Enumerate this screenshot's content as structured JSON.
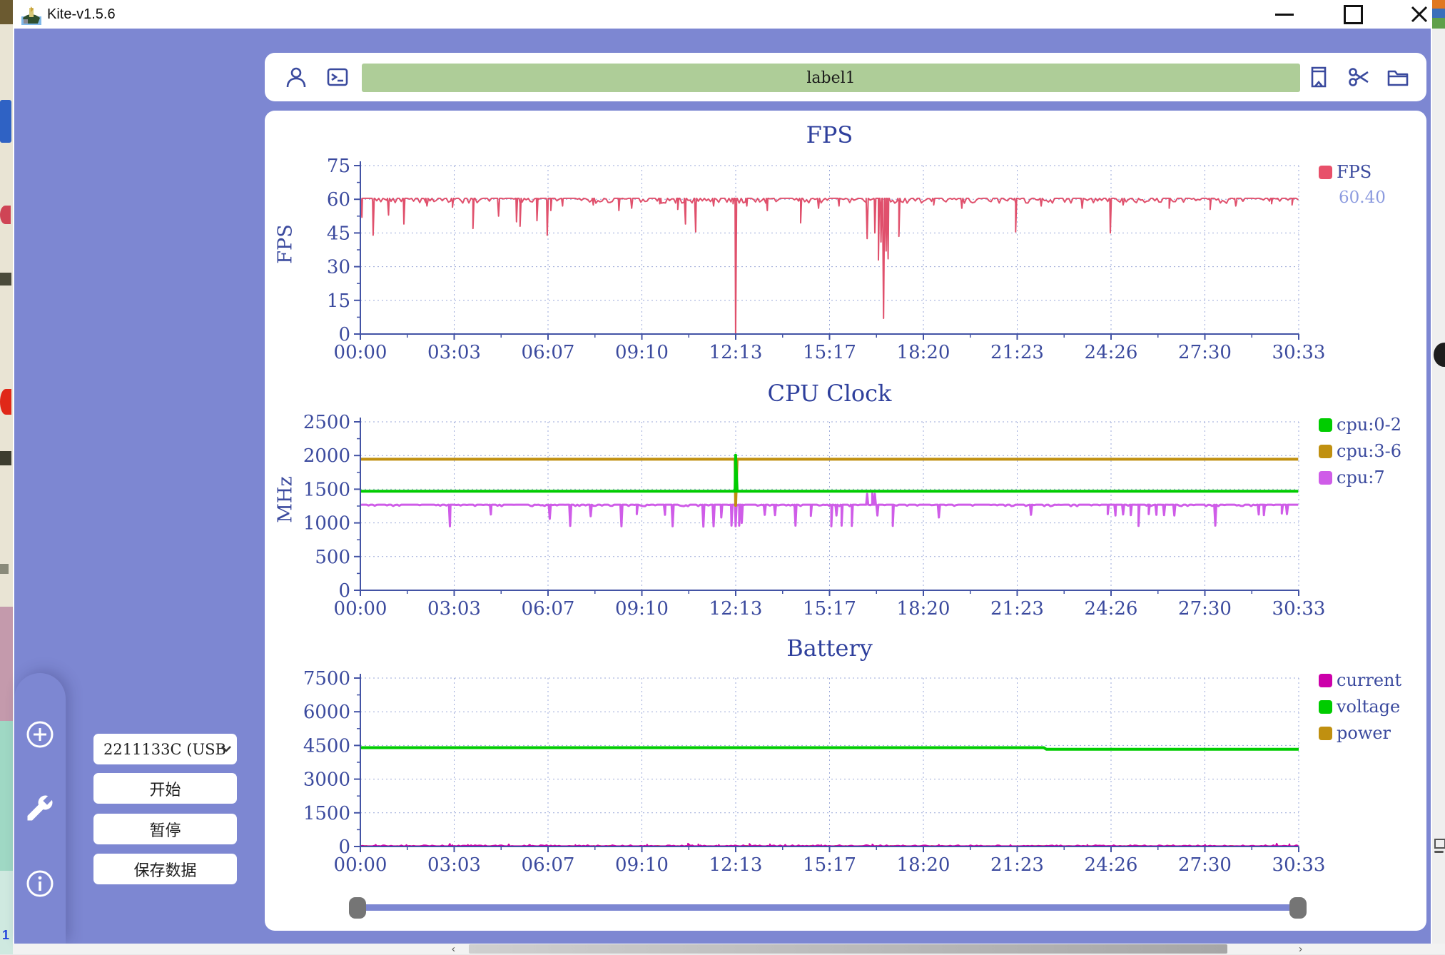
{
  "window": {
    "title": "Kite-v1.5.6"
  },
  "toolbar": {
    "label_value": "label1"
  },
  "controls": {
    "device_value": "2211133C (USB",
    "start_label": "开始",
    "pause_label": "暂停",
    "save_label": "保存数据"
  },
  "colors": {
    "purple": "#7d87d2",
    "panel": "#ffffff",
    "icon_blue": "#3a4a9e",
    "input_green": "#aecd98",
    "chart_text": "#3b4a9e",
    "axis": "#4353a5",
    "grid": "#9aa7d8",
    "fps_red": "#e8566e",
    "green": "#00cc00",
    "gold": "#c09010",
    "violet": "#cf5ce8",
    "magenta": "#cc00aa",
    "legend_value_blue": "#8c9bdf"
  },
  "chart_data": [
    {
      "type": "line",
      "title": "FPS",
      "ylabel": "FPS",
      "ylim": [
        0,
        75
      ],
      "yticks": [
        0,
        15,
        30,
        45,
        60,
        75
      ],
      "x_max_seconds": 1833,
      "xtick_labels": [
        "00:00",
        "03:03",
        "06:07",
        "09:10",
        "12:13",
        "15:17",
        "18:20",
        "21:23",
        "24:26",
        "27:30",
        "30:33"
      ],
      "grid": true,
      "legend": [
        {
          "label": "FPS",
          "color": "#e8506a",
          "value": "60.40"
        }
      ],
      "series": [
        {
          "name": "FPS",
          "color": "#e0506c",
          "width": 2,
          "mode": "noisy",
          "seed": 11,
          "baseline": 60.4,
          "noise": {
            "prob": 0.5,
            "amp": 2.2,
            "dir": -1
          },
          "dips": [
            [
              3,
              52
            ],
            [
              25,
              44
            ],
            [
              55,
              53
            ],
            [
              85,
              49
            ],
            [
              130,
              57
            ],
            [
              180,
              56.5
            ],
            [
              220,
              47
            ],
            [
              270,
              52.5
            ],
            [
              305,
              50
            ],
            [
              312,
              48
            ],
            [
              345,
              50.5
            ],
            [
              365,
              44
            ],
            [
              372,
              55
            ],
            [
              395,
              57
            ],
            [
              455,
              57.5
            ],
            [
              505,
              55
            ],
            [
              530,
              56
            ],
            [
              585,
              58
            ],
            [
              620,
              55.5
            ],
            [
              635,
              49
            ],
            [
              655,
              45.5
            ],
            [
              690,
              57
            ],
            [
              728,
              58
            ],
            [
              733,
              0.3
            ],
            [
              755,
              57
            ],
            [
              795,
              55
            ],
            [
              860,
              49.5
            ],
            [
              895,
              56
            ],
            [
              935,
              57
            ],
            [
              990,
              42.5
            ],
            [
              1005,
              45
            ],
            [
              1012,
              33
            ],
            [
              1017,
              41
            ],
            [
              1022,
              7
            ],
            [
              1027,
              37
            ],
            [
              1031,
              33.5
            ],
            [
              1052,
              43.5
            ],
            [
              1120,
              57.5
            ],
            [
              1175,
              56
            ],
            [
              1280,
              45.5
            ],
            [
              1330,
              57
            ],
            [
              1410,
              56
            ],
            [
              1465,
              45
            ],
            [
              1490,
              57.5
            ],
            [
              1580,
              56
            ],
            [
              1660,
              55.5
            ],
            [
              1710,
              57
            ],
            [
              1780,
              58
            ],
            [
              1820,
              57.5
            ]
          ]
        }
      ]
    },
    {
      "type": "line",
      "title": "CPU Clock",
      "ylabel": "MHz",
      "ylim": [
        0,
        2500
      ],
      "yticks": [
        0,
        500,
        1000,
        1500,
        2000,
        2500
      ],
      "x_max_seconds": 1833,
      "xtick_labels": [
        "00:00",
        "03:03",
        "06:07",
        "09:10",
        "12:13",
        "15:17",
        "18:20",
        "21:23",
        "24:26",
        "27:30",
        "30:33"
      ],
      "grid": true,
      "legend": [
        {
          "label": "cpu:0-2",
          "color": "#00cc00"
        },
        {
          "label": "cpu:3-6",
          "color": "#c09010"
        },
        {
          "label": "cpu:7",
          "color": "#cf5ce8"
        }
      ],
      "series": [
        {
          "name": "cpu:7",
          "color": "#cf5ce8",
          "width": 3,
          "mode": "noisy",
          "seed": 23,
          "baseline": 1270,
          "noise": {
            "prob": 0.3,
            "amp": 22,
            "dir": -1
          },
          "dips": [
            [
              175,
              950
            ],
            [
              255,
              1125
            ],
            [
              370,
              1060
            ],
            [
              410,
              955
            ],
            [
              450,
              1100
            ],
            [
              510,
              950
            ],
            [
              540,
              1130
            ],
            [
              595,
              1120
            ],
            [
              610,
              950
            ],
            [
              670,
              945
            ],
            [
              690,
              950
            ],
            [
              705,
              1080
            ],
            [
              725,
              960
            ],
            [
              733,
              950
            ],
            [
              740,
              960
            ],
            [
              745,
              1000
            ],
            [
              790,
              1120
            ],
            [
              810,
              1115
            ],
            [
              850,
              960
            ],
            [
              880,
              1105
            ],
            [
              920,
              950
            ],
            [
              930,
              1110
            ],
            [
              940,
              960
            ],
            [
              960,
              955
            ],
            [
              990,
              1430,
              5
            ],
            [
              1000,
              1435,
              5
            ],
            [
              1005,
              1430,
              4
            ],
            [
              1010,
              1110
            ],
            [
              1040,
              955
            ],
            [
              1130,
              1080
            ],
            [
              1310,
              1120
            ],
            [
              1460,
              1130
            ],
            [
              1475,
              1110
            ],
            [
              1490,
              1125
            ],
            [
              1505,
              1115
            ],
            [
              1520,
              955
            ],
            [
              1540,
              1130
            ],
            [
              1555,
              1120
            ],
            [
              1570,
              1115
            ],
            [
              1590,
              1110
            ],
            [
              1670,
              960
            ],
            [
              1755,
              1125
            ],
            [
              1765,
              1115
            ],
            [
              1800,
              1140
            ],
            [
              1810,
              1130
            ]
          ]
        },
        {
          "name": "cpu:3-6",
          "color": "#c09010",
          "width": 4,
          "mode": "noisy",
          "seed": 31,
          "baseline": 1945,
          "noise": {
            "prob": 0,
            "amp": 0,
            "dir": -1
          },
          "dips": [
            [
              733,
              1260,
              10
            ]
          ]
        },
        {
          "name": "cpu:0-2",
          "color": "#00cc00",
          "width": 4,
          "mode": "noisy",
          "seed": 37,
          "baseline": 1470,
          "noise": {
            "prob": 0,
            "amp": 0,
            "dir": 1
          },
          "dips": [
            [
              733,
              2005,
              8
            ]
          ]
        }
      ]
    },
    {
      "type": "line",
      "title": "Battery",
      "ylabel": "",
      "ylim": [
        0,
        7500
      ],
      "yticks": [
        0,
        1500,
        3000,
        4500,
        6000,
        7500
      ],
      "x_max_seconds": 1833,
      "xtick_labels": [
        "00:00",
        "03:03",
        "06:07",
        "09:10",
        "12:13",
        "15:17",
        "18:20",
        "21:23",
        "24:26",
        "27:30",
        "30:33"
      ],
      "grid": true,
      "legend": [
        {
          "label": "current",
          "color": "#cc00aa"
        },
        {
          "label": "voltage",
          "color": "#00cc00"
        },
        {
          "label": "power",
          "color": "#c09010"
        }
      ],
      "series": [
        {
          "name": "power",
          "color": "#c09010",
          "width": 2,
          "mode": "noisy",
          "seed": 53,
          "baseline": 10,
          "noise": {
            "prob": 0.3,
            "amp": 25,
            "dir": 1
          },
          "dips": [
            [
              640,
              70,
              8
            ],
            [
              760,
              60,
              8
            ],
            [
              1000,
              50,
              6
            ]
          ]
        },
        {
          "name": "current",
          "color": "#cc00aa",
          "width": 2,
          "mode": "noisy",
          "seed": 47,
          "baseline": 18,
          "noise": {
            "prob": 0.5,
            "amp": 45,
            "dir": 1
          },
          "dips": [
            [
              30,
              80
            ],
            [
              90,
              70
            ],
            [
              175,
              120,
              10
            ],
            [
              210,
              75
            ],
            [
              290,
              100,
              8
            ],
            [
              330,
              80
            ],
            [
              420,
              70
            ],
            [
              560,
              90
            ],
            [
              640,
              130,
              10
            ],
            [
              660,
              100
            ],
            [
              700,
              75
            ],
            [
              760,
              120,
              8
            ],
            [
              800,
              105
            ],
            [
              830,
              80
            ],
            [
              900,
              70
            ],
            [
              1000,
              95,
              8
            ],
            [
              1130,
              80
            ],
            [
              1270,
              70
            ],
            [
              1420,
              75
            ],
            [
              1650,
              80
            ],
            [
              1790,
              130,
              8
            ],
            [
              1815,
              105
            ]
          ]
        },
        {
          "name": "voltage",
          "color": "#00cc00",
          "width": 4,
          "mode": "poly",
          "points": [
            [
              0,
              4400
            ],
            [
              1335,
              4400
            ],
            [
              1340,
              4330
            ],
            [
              1833,
              4330
            ]
          ]
        }
      ]
    }
  ]
}
